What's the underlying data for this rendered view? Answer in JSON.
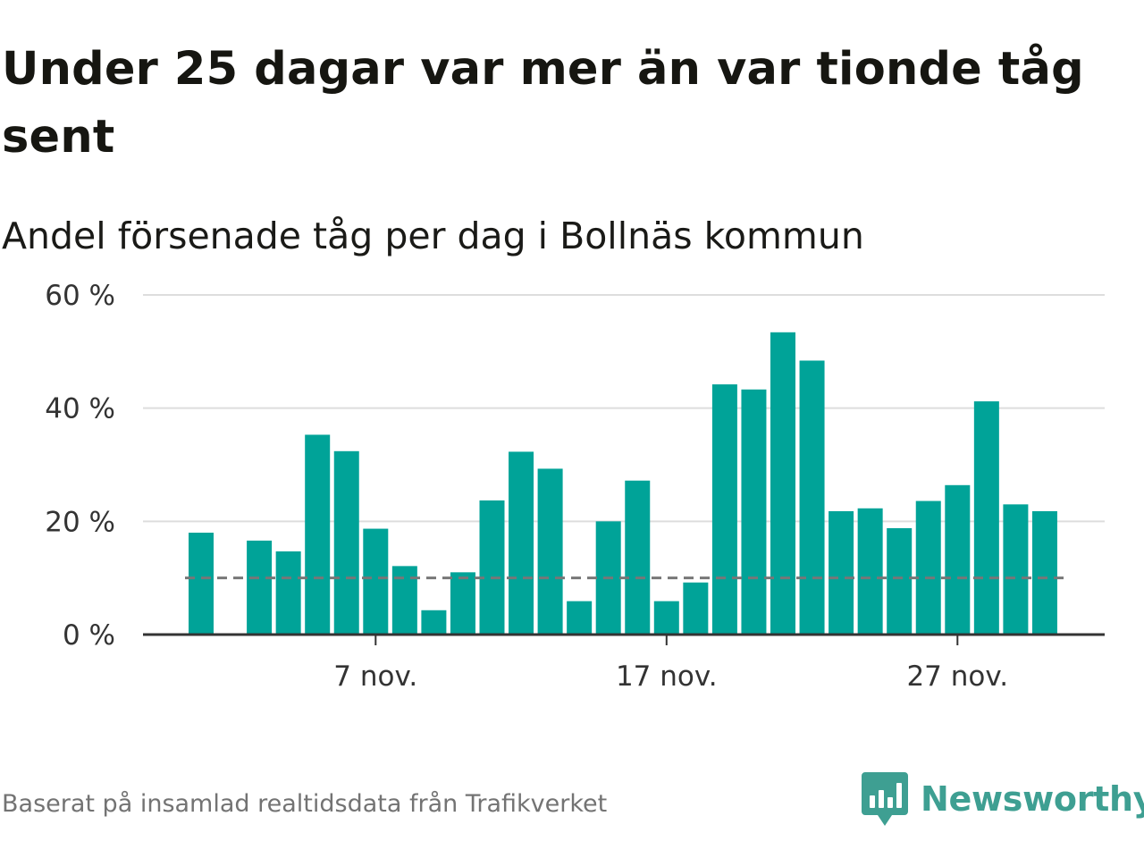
{
  "title": "Under 25 dagar var mer än var tionde tåg sent",
  "subtitle": "Andel försenade tåg per dag i Bollnäs kommun",
  "footer": "Baserat på insamlad realtidsdata från Trafikverket",
  "brand": {
    "name": "Newsworthy",
    "icon": "newsworthy-logo-icon",
    "color": "#3e9f92"
  },
  "colors": {
    "bar": "#00a398",
    "reference_line": "#777777",
    "grid": "#dddddd",
    "axis": "#333333"
  },
  "chart_data": {
    "type": "bar",
    "x_unit": "day of November",
    "x": [
      1,
      2,
      3,
      4,
      5,
      6,
      7,
      8,
      9,
      10,
      11,
      12,
      13,
      14,
      15,
      16,
      17,
      18,
      19,
      20,
      21,
      22,
      23,
      24,
      25,
      26,
      27,
      28,
      29,
      30
    ],
    "values": [
      18,
      null,
      16.6,
      14.7,
      35.3,
      32.4,
      18.7,
      12.1,
      4.3,
      11,
      23.7,
      32.3,
      29.3,
      5.9,
      20,
      27.2,
      5.9,
      9.2,
      44.2,
      43.3,
      53.4,
      48.4,
      21.8,
      22.3,
      18.8,
      23.6,
      26.4,
      41.2,
      23,
      21.8
    ],
    "reference_line": {
      "value": 10,
      "style": "dashed"
    },
    "xticks": [
      {
        "x": 7,
        "label": "7 nov."
      },
      {
        "x": 17,
        "label": "17 nov."
      },
      {
        "x": 27,
        "label": "27 nov."
      }
    ],
    "yticks": [
      {
        "value": 0,
        "label": "0 %"
      },
      {
        "value": 20,
        "label": "20 %"
      },
      {
        "value": 40,
        "label": "40 %"
      },
      {
        "value": 60,
        "label": "60 %"
      }
    ],
    "ylim": [
      0,
      60
    ],
    "grid": true,
    "legend": false
  }
}
